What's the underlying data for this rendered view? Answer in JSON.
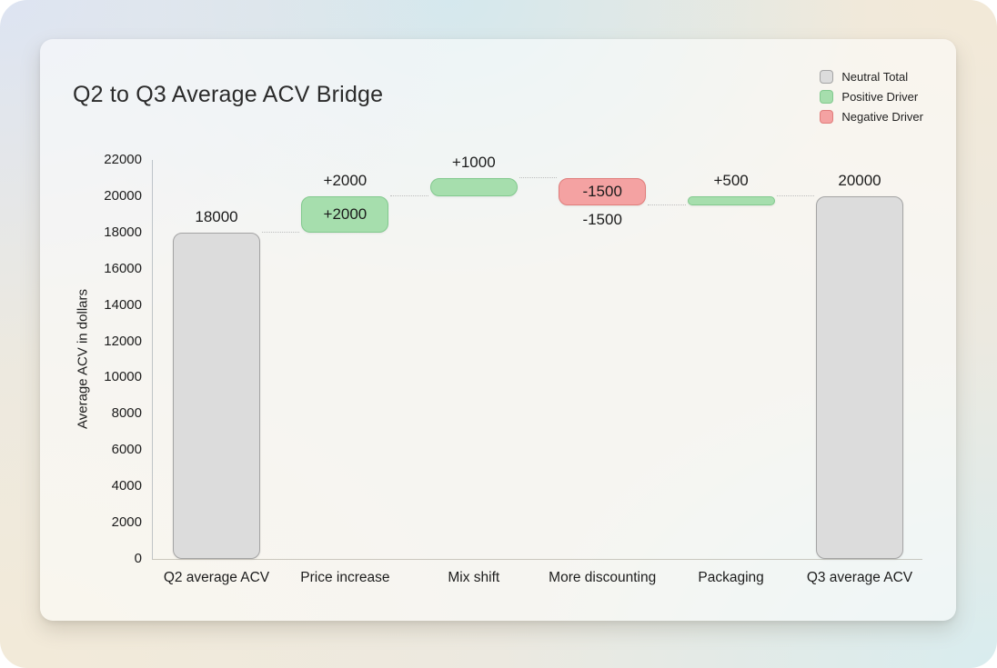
{
  "chart_data": {
    "type": "waterfall",
    "title": "Q2 to Q3 Average ACV Bridge",
    "ylabel": "Average ACV in dollars",
    "xlabel": "",
    "ylim": [
      0,
      22000
    ],
    "yticks": [
      0,
      2000,
      4000,
      6000,
      8000,
      10000,
      12000,
      14000,
      16000,
      18000,
      20000,
      22000
    ],
    "grid": false,
    "legend_position": "top-right",
    "legend": [
      {
        "label": "Neutral Total",
        "kind": "total"
      },
      {
        "label": "Positive Driver",
        "kind": "positive"
      },
      {
        "label": "Negative Driver",
        "kind": "negative"
      }
    ],
    "colors": {
      "total": "#dcdcdc",
      "positive": "#a6dead",
      "negative": "#f4a2a2"
    },
    "border_colors": {
      "total": "#a4a4a4",
      "positive": "#82c98e",
      "negative": "#e07d7b"
    },
    "categories": [
      "Q2 average ACV",
      "Price increase",
      "Mix shift",
      "More discounting",
      "Packaging",
      "Q3 average ACV"
    ],
    "bars": [
      {
        "category": "Q2 average ACV",
        "kind": "total",
        "start": 0,
        "end": 18000,
        "label_above": "18000"
      },
      {
        "category": "Price increase",
        "kind": "positive",
        "start": 18000,
        "end": 20000,
        "label_above": "+2000",
        "label_inside": "+2000"
      },
      {
        "category": "Mix shift",
        "kind": "positive",
        "start": 20000,
        "end": 21000,
        "label_above": "+1000"
      },
      {
        "category": "More discounting",
        "kind": "negative",
        "start": 21000,
        "end": 19500,
        "label_inside": "-1500",
        "label_below": "-1500"
      },
      {
        "category": "Packaging",
        "kind": "positive",
        "start": 19500,
        "end": 20000,
        "label_above": "+500"
      },
      {
        "category": "Q3 average ACV",
        "kind": "total",
        "start": 0,
        "end": 20000,
        "label_above": "20000"
      }
    ]
  }
}
